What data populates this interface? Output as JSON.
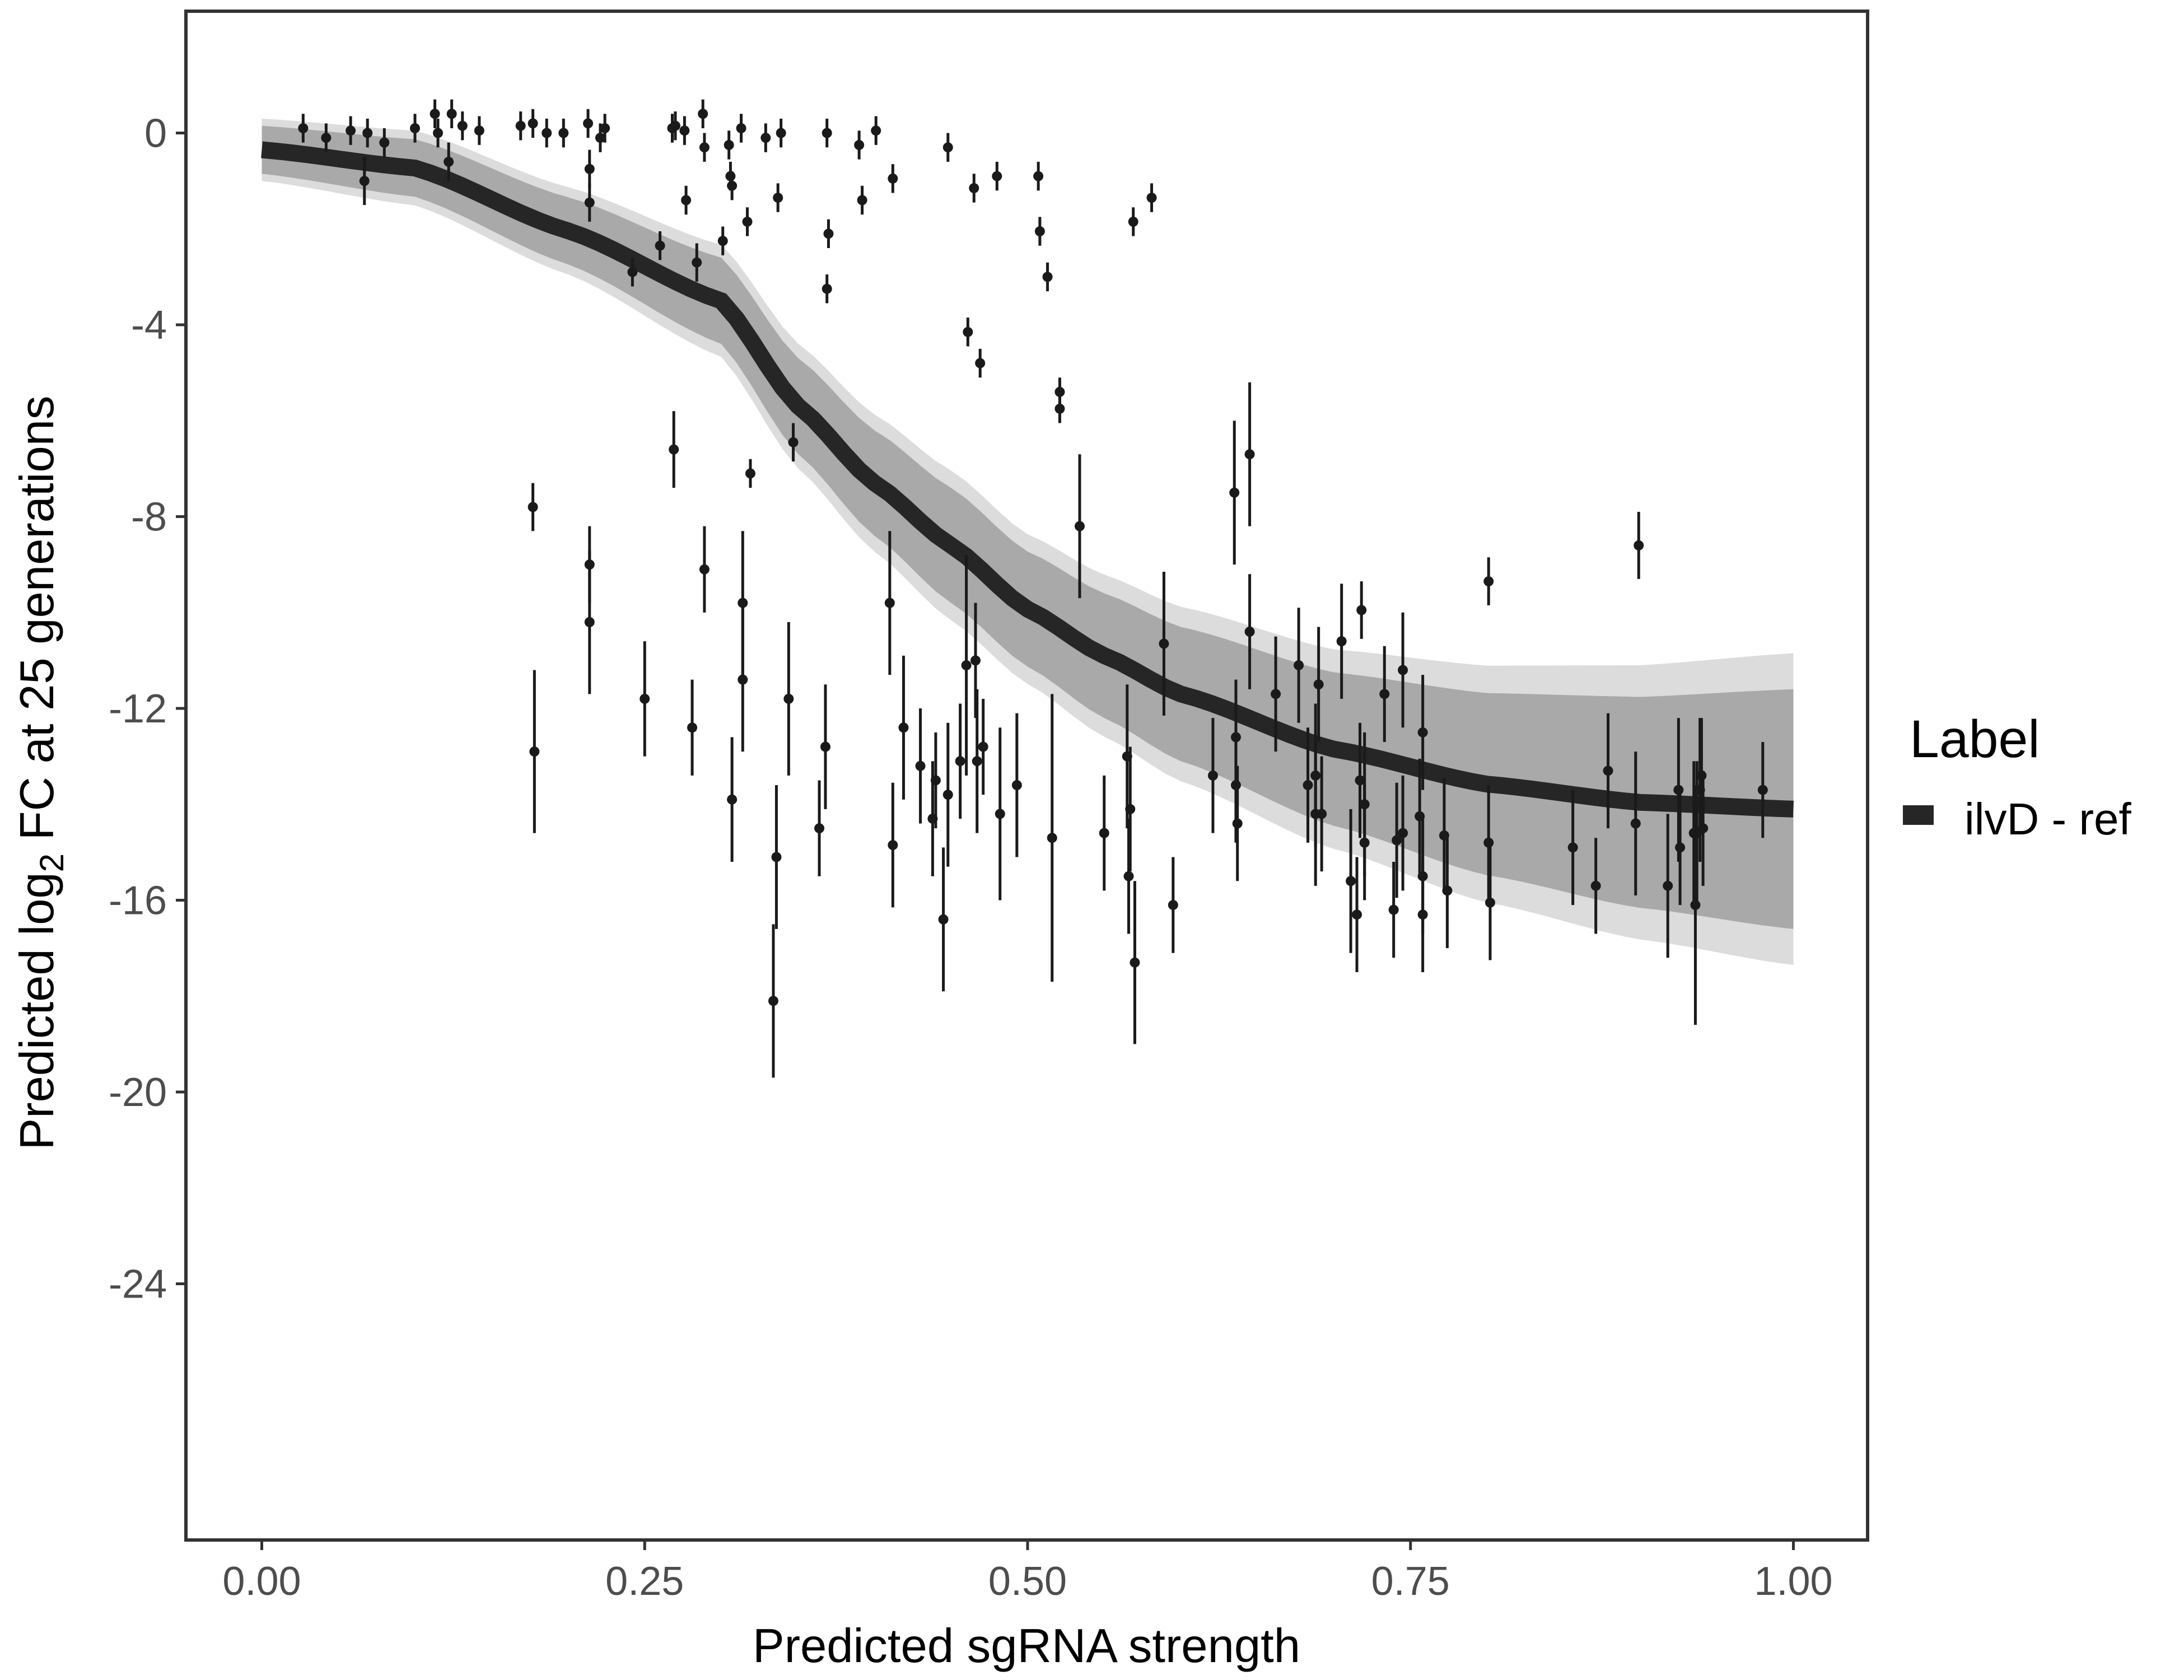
{
  "chart_data": {
    "type": "scatter",
    "title": "",
    "xlabel": "Predicted sgRNA strength",
    "ylabel_parts": {
      "pre": "Predicted  log",
      "sub": "2",
      "post": " FC at 25 generations"
    },
    "xlim": [
      -0.05,
      1.05
    ],
    "ylim": [
      -29.5,
      2.5
    ],
    "x_ticks": [
      "0.00",
      "0.25",
      "0.50",
      "0.75",
      "1.00"
    ],
    "x_tick_values": [
      0,
      0.25,
      0.5,
      0.75,
      1
    ],
    "y_ticks": [
      "0",
      "-4",
      "-8",
      "-12",
      "-16",
      "-20",
      "-24"
    ],
    "y_tick_values": [
      0,
      -4,
      -8,
      -12,
      -16,
      -20,
      -24
    ],
    "grid": false,
    "legend": {
      "title": "Label",
      "position": "right",
      "entries": [
        {
          "name": "ilvD - ref",
          "color": "#262626"
        }
      ]
    },
    "fit_curve": {
      "x": [
        0,
        0.1,
        0.2,
        0.3,
        0.35,
        0.4,
        0.45,
        0.5,
        0.55,
        0.6,
        0.7,
        0.8,
        0.9,
        1.0
      ],
      "y": [
        -0.35,
        -0.73,
        -2.04,
        -3.5,
        -5.69,
        -7.3,
        -8.6,
        -9.93,
        -10.9,
        -11.7,
        -12.85,
        -13.58,
        -13.96,
        -14.1
      ],
      "band_halfwidth": [
        0.5,
        0.6,
        0.7,
        0.9,
        1.0,
        1.1,
        1.2,
        1.2,
        1.3,
        1.4,
        1.6,
        1.9,
        2.2,
        2.5
      ],
      "color": "#262626",
      "band_color": "#a9a9a9"
    },
    "points_xy_err": [
      [
        0.027,
        0.1,
        0.3
      ],
      [
        0.042,
        -0.1,
        0.3
      ],
      [
        0.058,
        0.05,
        0.3
      ],
      [
        0.067,
        -1.0,
        0.5
      ],
      [
        0.069,
        0,
        0.3
      ],
      [
        0.08,
        -0.2,
        0.3
      ],
      [
        0.1,
        0.1,
        0.3
      ],
      [
        0.113,
        0.4,
        0.3
      ],
      [
        0.115,
        0,
        0.3
      ],
      [
        0.122,
        -0.6,
        0.4
      ],
      [
        0.124,
        0.4,
        0.3
      ],
      [
        0.131,
        0.15,
        0.3
      ],
      [
        0.142,
        0.05,
        0.3
      ],
      [
        0.169,
        0.15,
        0.3
      ],
      [
        0.177,
        0.2,
        0.3
      ],
      [
        0.186,
        0,
        0.3
      ],
      [
        0.197,
        0,
        0.3
      ],
      [
        0.213,
        0.2,
        0.3
      ],
      [
        0.214,
        -0.75,
        0.4
      ],
      [
        0.214,
        -1.45,
        0.4
      ],
      [
        0.221,
        -0.1,
        0.3
      ],
      [
        0.224,
        0.1,
        0.3
      ],
      [
        0.177,
        -7.8,
        0.5
      ],
      [
        0.178,
        -12.9,
        1.7
      ],
      [
        0.214,
        -9.0,
        0.8
      ],
      [
        0.214,
        -10.2,
        1.5
      ],
      [
        0.242,
        -2.9,
        0.3
      ],
      [
        0.25,
        -11.8,
        1.2
      ],
      [
        0.26,
        -2.35,
        0.3
      ],
      [
        0.269,
        -6.6,
        0.8
      ],
      [
        0.268,
        0.1,
        0.3
      ],
      [
        0.27,
        0.15,
        0.3
      ],
      [
        0.277,
        -1.4,
        0.3
      ],
      [
        0.276,
        0.05,
        0.3
      ],
      [
        0.281,
        -12.4,
        1.0
      ],
      [
        0.284,
        -2.7,
        0.4
      ],
      [
        0.288,
        0.4,
        0.3
      ],
      [
        0.289,
        -0.3,
        0.3
      ],
      [
        0.289,
        -9.1,
        0.9
      ],
      [
        0.301,
        -2.25,
        0.3
      ],
      [
        0.305,
        -0.25,
        0.3
      ],
      [
        0.306,
        -0.9,
        0.3
      ],
      [
        0.307,
        -1.1,
        0.3
      ],
      [
        0.307,
        -13.9,
        1.3
      ],
      [
        0.313,
        0.1,
        0.3
      ],
      [
        0.314,
        -9.8,
        1.5
      ],
      [
        0.314,
        -11.4,
        1.5
      ],
      [
        0.317,
        -1.85,
        0.3
      ],
      [
        0.319,
        -7.1,
        0.3
      ],
      [
        0.329,
        -0.1,
        0.3
      ],
      [
        0.334,
        -18.1,
        1.6
      ],
      [
        0.336,
        -15.1,
        1.5
      ],
      [
        0.337,
        -1.35,
        0.3
      ],
      [
        0.339,
        0,
        0.3
      ],
      [
        0.344,
        -11.8,
        1.6
      ],
      [
        0.347,
        -6.45,
        0.4
      ],
      [
        0.364,
        -14.5,
        1.0
      ],
      [
        0.368,
        -12.8,
        1.3
      ],
      [
        0.369,
        0,
        0.3
      ],
      [
        0.37,
        -2.1,
        0.3
      ],
      [
        0.369,
        -3.25,
        0.3
      ],
      [
        0.39,
        -0.25,
        0.3
      ],
      [
        0.392,
        -1.4,
        0.3
      ],
      [
        0.401,
        0.05,
        0.3
      ],
      [
        0.41,
        -9.8,
        1.5
      ],
      [
        0.412,
        -0.95,
        0.3
      ],
      [
        0.412,
        -14.85,
        1.3
      ],
      [
        0.419,
        -12.4,
        1.5
      ],
      [
        0.43,
        -13.2,
        1.2
      ],
      [
        0.438,
        -14.3,
        1.2
      ],
      [
        0.44,
        -13.5,
        1.0
      ],
      [
        0.445,
        -16.4,
        1.5
      ],
      [
        0.448,
        -13.8,
        1.5
      ],
      [
        0.448,
        -0.3,
        0.3
      ],
      [
        0.456,
        -13.1,
        1.2
      ],
      [
        0.461,
        -4.15,
        0.3
      ],
      [
        0.46,
        -11.1,
        2.3
      ],
      [
        0.465,
        -1.15,
        0.3
      ],
      [
        0.466,
        -11.0,
        1.2
      ],
      [
        0.469,
        -4.8,
        0.3
      ],
      [
        0.467,
        -13.1,
        1.5
      ],
      [
        0.471,
        -12.8,
        1.0
      ],
      [
        0.48,
        -0.9,
        0.3
      ],
      [
        0.482,
        -14.2,
        1.8
      ],
      [
        0.493,
        -13.6,
        1.5
      ],
      [
        0.507,
        -0.9,
        0.3
      ],
      [
        0.508,
        -2.05,
        0.3
      ],
      [
        0.513,
        -3.0,
        0.3
      ],
      [
        0.516,
        -14.7,
        3.0
      ],
      [
        0.521,
        -5.4,
        0.3
      ],
      [
        0.521,
        -5.75,
        0.3
      ],
      [
        0.534,
        -8.2,
        1.5
      ],
      [
        0.55,
        -14.6,
        1.2
      ],
      [
        0.565,
        -13.0,
        1.5
      ],
      [
        0.567,
        -14.1,
        1.3
      ],
      [
        0.566,
        -15.5,
        1.2
      ],
      [
        0.569,
        -1.85,
        0.3
      ],
      [
        0.57,
        -17.3,
        1.7
      ],
      [
        0.581,
        -1.35,
        0.3
      ],
      [
        0.589,
        -10.65,
        1.5
      ],
      [
        0.595,
        -16.1,
        1.0
      ],
      [
        0.621,
        -13.4,
        1.2
      ],
      [
        0.635,
        -7.5,
        1.5
      ],
      [
        0.636,
        -12.6,
        1.2
      ],
      [
        0.636,
        -13.6,
        1.2
      ],
      [
        0.637,
        -14.4,
        1.2
      ],
      [
        0.645,
        -6.7,
        1.5
      ],
      [
        0.645,
        -10.4,
        1.2
      ],
      [
        0.662,
        -11.7,
        1.2
      ],
      [
        0.677,
        -11.1,
        1.2
      ],
      [
        0.683,
        -13.6,
        1.2
      ],
      [
        0.688,
        -13.4,
        1.5
      ],
      [
        0.688,
        -14.2,
        1.5
      ],
      [
        0.69,
        -11.5,
        1.2
      ],
      [
        0.692,
        -14.2,
        1.2
      ],
      [
        0.705,
        -10.6,
        1.2
      ],
      [
        0.711,
        -15.6,
        1.5
      ],
      [
        0.715,
        -16.3,
        1.2
      ],
      [
        0.717,
        -13.5,
        1.2
      ],
      [
        0.718,
        -9.95,
        0.6
      ],
      [
        0.72,
        -14.0,
        1.5
      ],
      [
        0.72,
        -14.8,
        1.2
      ],
      [
        0.733,
        -11.7,
        1.0
      ],
      [
        0.739,
        -16.2,
        1.0
      ],
      [
        0.741,
        -14.75,
        1.2
      ],
      [
        0.745,
        -11.2,
        1.2
      ],
      [
        0.745,
        -14.6,
        1.2
      ],
      [
        0.756,
        -14.25,
        1.2
      ],
      [
        0.758,
        -12.5,
        1.2
      ],
      [
        0.758,
        -15.5,
        1.2
      ],
      [
        0.758,
        -16.3,
        1.2
      ],
      [
        0.772,
        -14.65,
        1.2
      ],
      [
        0.774,
        -15.8,
        1.2
      ],
      [
        0.801,
        -9.35,
        0.5
      ],
      [
        0.801,
        -14.8,
        1.2
      ],
      [
        0.802,
        -16.05,
        1.2
      ],
      [
        0.856,
        -14.9,
        1.2
      ],
      [
        0.871,
        -15.7,
        1.0
      ],
      [
        0.879,
        -13.3,
        1.2
      ],
      [
        0.897,
        -14.4,
        1.5
      ],
      [
        0.899,
        -8.6,
        0.7
      ],
      [
        0.918,
        -15.7,
        1.5
      ],
      [
        0.925,
        -13.7,
        1.5
      ],
      [
        0.926,
        -14.9,
        1.2
      ],
      [
        0.935,
        -14.6,
        1.5
      ],
      [
        0.936,
        -16.1,
        2.5
      ],
      [
        0.937,
        -14.6,
        1.5
      ],
      [
        0.939,
        -13.7,
        1.5
      ],
      [
        0.941,
        -14.5,
        1.2
      ],
      [
        0.94,
        -13.4,
        1.2
      ],
      [
        0.98,
        -13.7,
        1.0
      ]
    ]
  }
}
